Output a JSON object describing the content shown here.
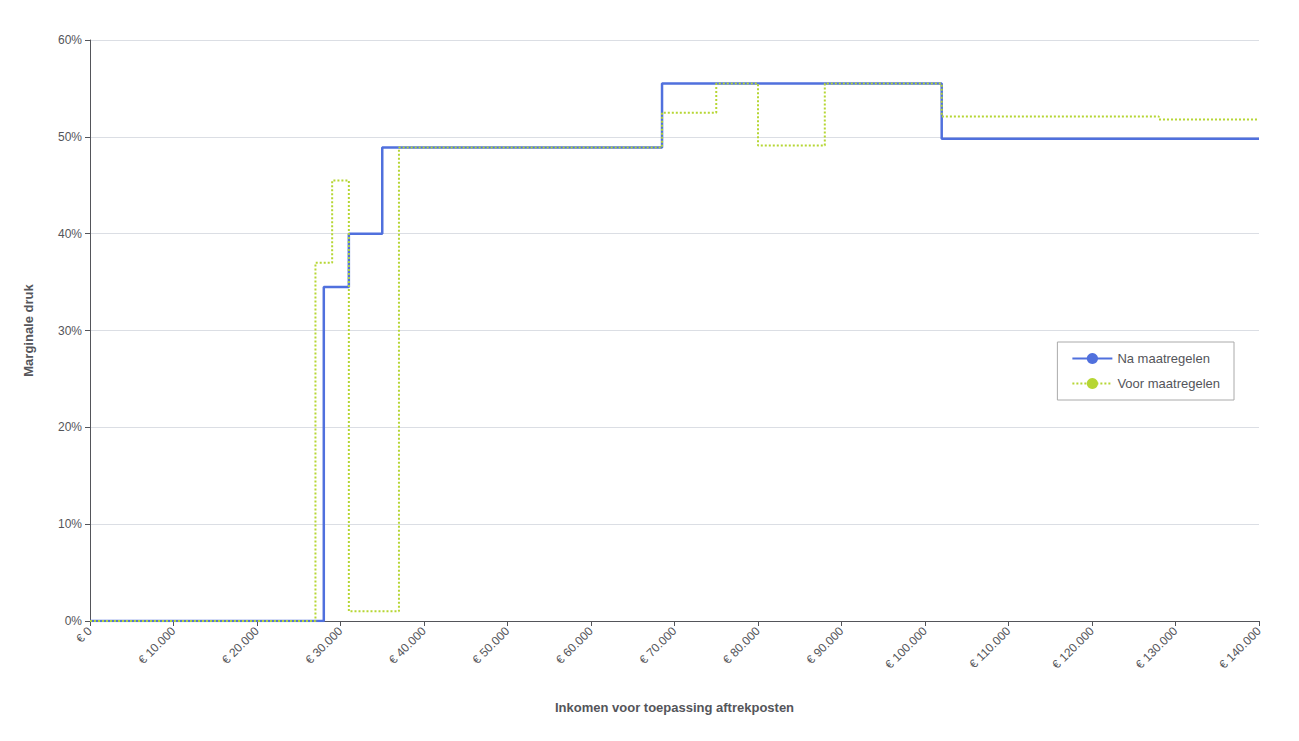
{
  "chart_data": {
    "type": "line",
    "xlabel": "Inkomen voor toepassing aftrekposten",
    "ylabel": "Marginale druk",
    "xlim": [
      0,
      140000
    ],
    "ylim": [
      0.0,
      0.6
    ],
    "xticks": [
      {
        "value": 0,
        "label": "€ 0"
      },
      {
        "value": 10000,
        "label": "€ 10.000"
      },
      {
        "value": 20000,
        "label": "€ 20.000"
      },
      {
        "value": 30000,
        "label": "€ 30.000"
      },
      {
        "value": 40000,
        "label": "€ 40.000"
      },
      {
        "value": 50000,
        "label": "€ 50.000"
      },
      {
        "value": 60000,
        "label": "€ 60.000"
      },
      {
        "value": 70000,
        "label": "€ 70.000"
      },
      {
        "value": 80000,
        "label": "€ 80.000"
      },
      {
        "value": 90000,
        "label": "€ 90.000"
      },
      {
        "value": 100000,
        "label": "€ 100.000"
      },
      {
        "value": 110000,
        "label": "€ 110.000"
      },
      {
        "value": 120000,
        "label": "€ 120.000"
      },
      {
        "value": 130000,
        "label": "€ 130.000"
      },
      {
        "value": 140000,
        "label": "€ 140.000"
      }
    ],
    "yticks": [
      {
        "value": 0.0,
        "label": "0%"
      },
      {
        "value": 0.1,
        "label": "10%"
      },
      {
        "value": 0.2,
        "label": "20%"
      },
      {
        "value": 0.3,
        "label": "30%"
      },
      {
        "value": 0.4,
        "label": "40%"
      },
      {
        "value": 0.5,
        "label": "50%"
      },
      {
        "value": 0.6,
        "label": "60%"
      }
    ],
    "grid": true,
    "legend": "lower right",
    "series": [
      {
        "name": "Na maatregelen",
        "line_style": "solid",
        "x": [
          0,
          28000,
          28000,
          31000,
          31000,
          35000,
          35000,
          68507,
          68507,
          102000,
          102000,
          140000
        ],
        "values": [
          0.0,
          0.0,
          0.345,
          0.345,
          0.4,
          0.4,
          0.489,
          0.489,
          0.555,
          0.555,
          0.498,
          0.498
        ]
      },
      {
        "name": "Voor maatregelen",
        "line_style": "dotted",
        "x": [
          0,
          27000,
          27000,
          29000,
          29000,
          31000,
          31000,
          37000,
          37000,
          68507,
          68507,
          75000,
          75000,
          80000,
          80000,
          88000,
          88000,
          102000,
          102000,
          128000,
          128000,
          140000
        ],
        "values": [
          0.0,
          0.0,
          0.37,
          0.37,
          0.455,
          0.455,
          0.01,
          0.01,
          0.489,
          0.489,
          0.525,
          0.525,
          0.555,
          0.555,
          0.491,
          0.491,
          0.555,
          0.555,
          0.521,
          0.521,
          0.518,
          0.518
        ]
      }
    ]
  }
}
